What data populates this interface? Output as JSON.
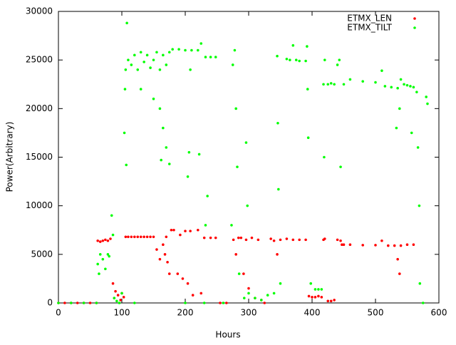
{
  "chart_data": {
    "type": "scatter",
    "x_label": "Hours",
    "y_label": "Power(Arbitrary)",
    "xlim": [
      0,
      600
    ],
    "ylim": [
      0,
      30000
    ],
    "xticks": [
      0,
      100,
      200,
      300,
      400,
      500,
      600
    ],
    "yticks": [
      0,
      5000,
      10000,
      15000,
      20000,
      25000,
      30000
    ],
    "legend": "top-right",
    "series": [
      {
        "name": "ETMX_LEN",
        "color": "#ff0000",
        "x": [
          0,
          10,
          20,
          30,
          40,
          50,
          60,
          62,
          66,
          70,
          74,
          78,
          82,
          86,
          88,
          90,
          94,
          98,
          100,
          103,
          106,
          110,
          115,
          120,
          125,
          130,
          135,
          140,
          145,
          150,
          155,
          160,
          165,
          168,
          170,
          172,
          175,
          178,
          182,
          188,
          192,
          196,
          200,
          204,
          208,
          212,
          220,
          225,
          230,
          240,
          248,
          255,
          265,
          276,
          280,
          284,
          288,
          292,
          296,
          300,
          305,
          310,
          315,
          320,
          325,
          335,
          340,
          345,
          350,
          360,
          370,
          380,
          390,
          395,
          400,
          405,
          410,
          415,
          418,
          420,
          425,
          430,
          435,
          440,
          445,
          447,
          450,
          460,
          480,
          500,
          510,
          520,
          530,
          535,
          538,
          540,
          550,
          560
        ],
        "values": [
          0,
          0,
          0,
          0,
          0,
          0,
          0,
          6400,
          6300,
          6400,
          6500,
          6400,
          6600,
          2000,
          500,
          1200,
          800,
          300,
          1000,
          600,
          6800,
          6800,
          6800,
          6800,
          6800,
          6800,
          6800,
          6800,
          6800,
          6800,
          5500,
          4500,
          6000,
          5000,
          6800,
          4200,
          3000,
          7500,
          7500,
          3000,
          7000,
          2500,
          7400,
          2000,
          7400,
          800,
          7500,
          1000,
          6700,
          6700,
          6700,
          0,
          0,
          6500,
          5000,
          6700,
          6700,
          3000,
          6500,
          1500,
          6700,
          500,
          6500,
          300,
          0,
          6600,
          6400,
          5000,
          6500,
          6600,
          6500,
          6500,
          6500,
          700,
          600,
          600,
          700,
          600,
          6500,
          6600,
          200,
          200,
          300,
          6500,
          6400,
          6000,
          6000,
          6000,
          5950,
          5950,
          6400,
          5900,
          5900,
          4500,
          3000,
          5900,
          6000,
          6000
        ]
      },
      {
        "name": "ETMX_TILT",
        "color": "#00ff00",
        "x": [
          0,
          20,
          40,
          60,
          62,
          64,
          66,
          70,
          74,
          78,
          80,
          84,
          86,
          88,
          92,
          96,
          100,
          104,
          105,
          106,
          107,
          108,
          110,
          115,
          120,
          125,
          130,
          135,
          140,
          145,
          150,
          155,
          160,
          165,
          170,
          175,
          130,
          150,
          160,
          165,
          170,
          162,
          175,
          180,
          190,
          200,
          210,
          220,
          225,
          206,
          204,
          222,
          208,
          120,
          200,
          230,
          260,
          232,
          240,
          248,
          235,
          232,
          273,
          275,
          278,
          280,
          282,
          285,
          293,
          296,
          298,
          300,
          310,
          320,
          330,
          340,
          345,
          346,
          347,
          350,
          360,
          365,
          370,
          375,
          380,
          390,
          392,
          393,
          394,
          398,
          405,
          410,
          415,
          418,
          420,
          419,
          425,
          430,
          435,
          440,
          443,
          445,
          450,
          460,
          480,
          500,
          510,
          515,
          525,
          535,
          540,
          545,
          550,
          555,
          560,
          565,
          533,
          538,
          557,
          567,
          569,
          570,
          575,
          580,
          582
        ],
        "values": [
          0,
          0,
          0,
          0,
          4000,
          3000,
          5000,
          4500,
          3500,
          5000,
          4800,
          9000,
          7000,
          500,
          200,
          0,
          1000,
          17500,
          22000,
          24000,
          14200,
          28800,
          25000,
          24500,
          25500,
          24000,
          25800,
          24800,
          25500,
          24200,
          25000,
          25800,
          24000,
          25500,
          24500,
          25800,
          22000,
          21000,
          20000,
          18000,
          16000,
          14700,
          14300,
          26100,
          26100,
          26000,
          26000,
          26000,
          26700,
          15500,
          13000,
          15300,
          24000,
          0,
          0,
          0,
          0,
          25300,
          25300,
          25300,
          11000,
          8000,
          8000,
          24500,
          26000,
          20000,
          14000,
          3000,
          500,
          16500,
          10000,
          1000,
          500,
          300,
          800,
          1000,
          25400,
          18500,
          11700,
          2000,
          25100,
          25000,
          26500,
          25000,
          24900,
          24900,
          26400,
          22000,
          17000,
          2000,
          1400,
          1400,
          1400,
          22500,
          25000,
          15000,
          22500,
          22600,
          22500,
          24500,
          25000,
          14000,
          22500,
          23000,
          22800,
          22700,
          23900,
          22300,
          22200,
          22100,
          23000,
          22500,
          22400,
          22300,
          22200,
          21700,
          18000,
          20000,
          17500,
          16000,
          10000,
          2000,
          0,
          21200,
          20500
        ]
      }
    ]
  }
}
